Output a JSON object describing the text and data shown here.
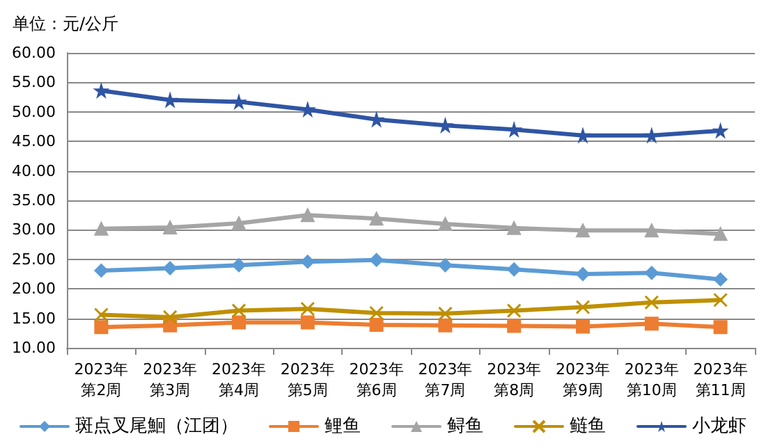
{
  "chart_data": {
    "type": "line",
    "title": "单位：元/公斤",
    "categories": [
      "2023年第2周",
      "2023年第3周",
      "2023年第4周",
      "2023年第5周",
      "2023年第6周",
      "2023年第7周",
      "2023年第8周",
      "2023年第9周",
      "2023年第10周",
      "2023年第11周"
    ],
    "series": [
      {
        "name": "斑点叉尾鮰（江团）",
        "color": "#5b9bd5",
        "marker": "diamond",
        "values": [
          23.1,
          23.5,
          24.0,
          24.6,
          24.9,
          24.0,
          23.3,
          22.5,
          22.7,
          21.6
        ]
      },
      {
        "name": "鲤鱼",
        "color": "#ed7d31",
        "marker": "square",
        "values": [
          13.5,
          13.8,
          14.3,
          14.3,
          13.9,
          13.8,
          13.7,
          13.6,
          14.1,
          13.5
        ]
      },
      {
        "name": "鲟鱼",
        "color": "#a5a5a5",
        "marker": "triangle",
        "values": [
          30.2,
          30.4,
          31.1,
          32.5,
          31.9,
          31.0,
          30.3,
          29.9,
          29.9,
          29.3
        ]
      },
      {
        "name": "鲢鱼",
        "color": "#bf9000",
        "marker": "cross",
        "values": [
          15.6,
          15.2,
          16.3,
          16.6,
          15.9,
          15.8,
          16.3,
          16.9,
          17.7,
          18.1
        ]
      },
      {
        "name": "小龙虾",
        "color": "#2f55a4",
        "marker": "star",
        "values": [
          53.6,
          52.0,
          51.7,
          50.4,
          48.7,
          47.7,
          47.0,
          46.0,
          46.0,
          46.8
        ]
      }
    ],
    "ylim": [
      10,
      60
    ],
    "yticks": [
      {
        "value": 10,
        "label": "10.00"
      },
      {
        "value": 15,
        "label": "15.00"
      },
      {
        "value": 20,
        "label": "20.00"
      },
      {
        "value": 25,
        "label": "25.00"
      },
      {
        "value": 30,
        "label": "30.00"
      },
      {
        "value": 35,
        "label": "35.00"
      },
      {
        "value": 40,
        "label": "40.00"
      },
      {
        "value": 45,
        "label": "45.00"
      },
      {
        "value": 50,
        "label": "50.00"
      },
      {
        "value": 55,
        "label": "55.00"
      },
      {
        "value": 60,
        "label": "60.00"
      }
    ],
    "grid": "y",
    "legend": "bottom"
  }
}
